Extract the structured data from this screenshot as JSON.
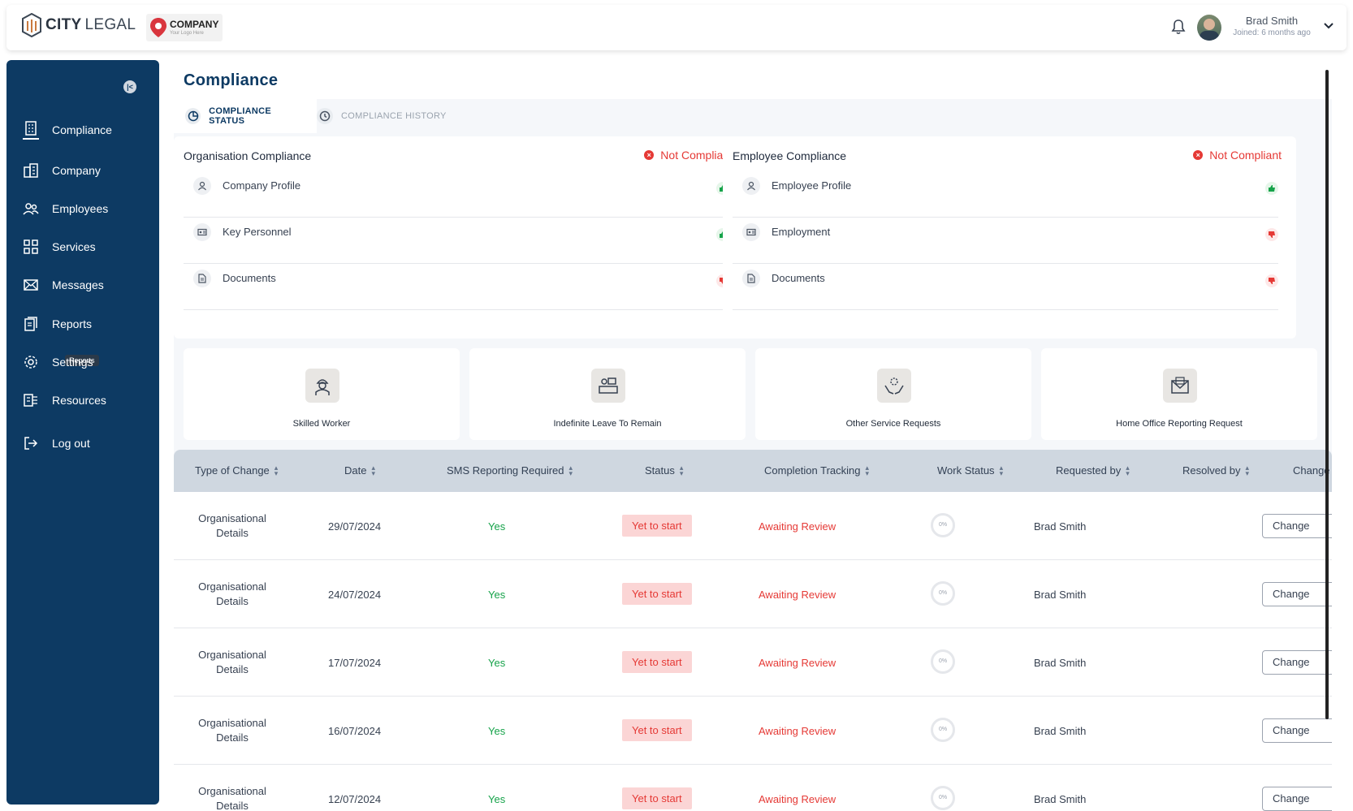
{
  "header": {
    "brand_city": "CITY",
    "brand_legal": "LEGAL",
    "company_name": "COMPANY",
    "company_tagline": "Your Logo Here",
    "user_name": "Brad Smith",
    "user_joined": "Joined: 6 months ago"
  },
  "sidebar": {
    "items": [
      {
        "label": "Compliance",
        "icon": "building-icon"
      },
      {
        "label": "Company",
        "icon": "office-icon"
      },
      {
        "label": "Employees",
        "icon": "users-icon"
      },
      {
        "label": "Services",
        "icon": "grid-icon"
      },
      {
        "label": "Messages",
        "icon": "mail-icon"
      },
      {
        "label": "Reports",
        "icon": "report-icon"
      },
      {
        "label": "Settings",
        "icon": "gear-icon"
      },
      {
        "label": "Resources",
        "icon": "resources-icon"
      },
      {
        "label": "Log out",
        "icon": "logout-icon"
      }
    ],
    "tooltip": "Reports"
  },
  "main": {
    "title": "Compliance",
    "tabs": [
      {
        "label": "COMPLIANCE STATUS",
        "active": true
      },
      {
        "label": "COMPLIANCE HISTORY",
        "active": false
      }
    ],
    "org_compliance": {
      "title": "Organisation Compliance",
      "status": "Not Compliant",
      "rows": [
        {
          "label": "Company Profile",
          "ok": true
        },
        {
          "label": "Key Personnel",
          "ok": true
        },
        {
          "label": "Documents",
          "ok": false
        }
      ]
    },
    "emp_compliance": {
      "title": "Employee Compliance",
      "status": "Not Compliant",
      "rows": [
        {
          "label": "Employee Profile",
          "ok": true
        },
        {
          "label": "Employment",
          "ok": false
        },
        {
          "label": "Documents",
          "ok": false
        }
      ]
    },
    "services": [
      {
        "label": "Skilled Worker"
      },
      {
        "label": "Indefinite Leave To Remain"
      },
      {
        "label": "Other Service Requests"
      },
      {
        "label": "Home Office Reporting Request"
      }
    ],
    "table": {
      "columns": [
        "Type of Change",
        "Date",
        "SMS Reporting Required",
        "Status",
        "Completion Tracking",
        "Work Status",
        "Requested by",
        "Resolved by",
        "Change"
      ],
      "rows": [
        {
          "type": "Organisational Details",
          "date": "29/07/2024",
          "sms": "Yes",
          "status": "Yet to start",
          "tracking": "Awaiting Review",
          "work": "0%",
          "requested": "Brad Smith",
          "action": "Change"
        },
        {
          "type": "Organisational Details",
          "date": "24/07/2024",
          "sms": "Yes",
          "status": "Yet to start",
          "tracking": "Awaiting Review",
          "work": "0%",
          "requested": "Brad Smith",
          "action": "Change"
        },
        {
          "type": "Organisational Details",
          "date": "17/07/2024",
          "sms": "Yes",
          "status": "Yet to start",
          "tracking": "Awaiting Review",
          "work": "0%",
          "requested": "Brad Smith",
          "action": "Change"
        },
        {
          "type": "Organisational Details",
          "date": "16/07/2024",
          "sms": "Yes",
          "status": "Yet to start",
          "tracking": "Awaiting Review",
          "work": "0%",
          "requested": "Brad Smith",
          "action": "Change"
        },
        {
          "type": "Organisational Details",
          "date": "12/07/2024",
          "sms": "Yes",
          "status": "Yet to start",
          "tracking": "Awaiting Review",
          "work": "0%",
          "requested": "Brad Smith",
          "action": "Change"
        }
      ]
    }
  },
  "colors": {
    "sidebar": "#0d3a63",
    "danger": "#e53935",
    "success": "#16a34a",
    "table_header": "#cfd7e0"
  }
}
